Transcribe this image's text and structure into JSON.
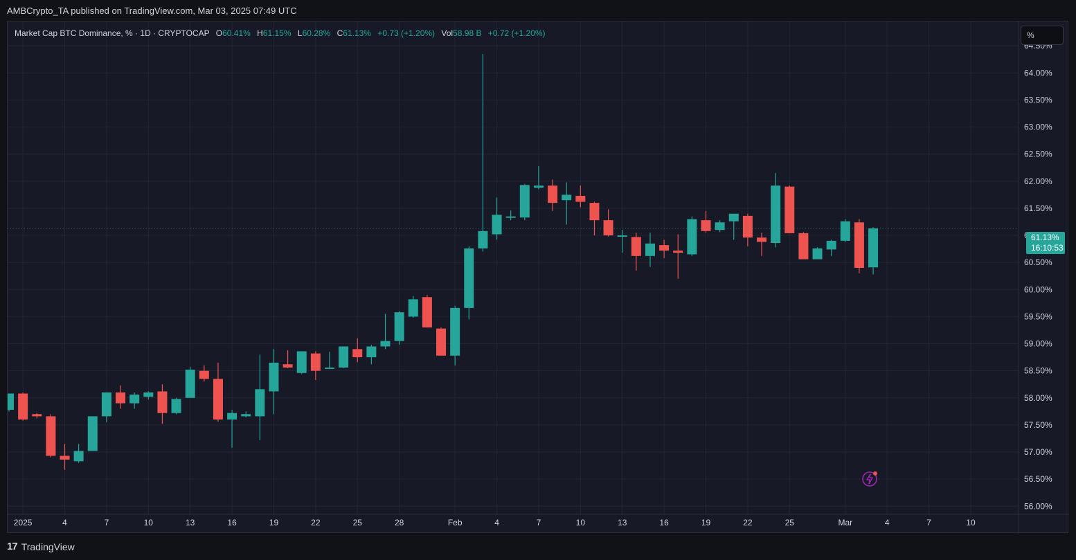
{
  "header": {
    "publish_text": "AMBCrypto_TA published on TradingView.com, Mar 03, 2025 07:49 UTC"
  },
  "legend": {
    "symbol": "Market Cap BTC Dominance, % · 1D · CRYPTOCAP",
    "o_label": "O",
    "o_value": "60.41%",
    "h_label": "H",
    "h_value": "61.15%",
    "l_label": "L",
    "l_value": "60.28%",
    "c_label": "C",
    "c_value": "61.13%",
    "change": "+0.73 (+1.20%)",
    "vol_label": "Vol",
    "vol_value": "58.98 B",
    "vol_change": "+0.72 (+1.20%)"
  },
  "controls": {
    "scale_button": "%"
  },
  "price_tag": {
    "price": "61.13%",
    "countdown": "16:10:53"
  },
  "footer": {
    "brand": "TradingView",
    "logo_glyph": "17"
  },
  "colors": {
    "up": "#26a69a",
    "down": "#ef5350",
    "grid": "#222634",
    "background": "#171a26"
  },
  "icons": {
    "flash": "lightning-icon"
  },
  "chart_data": {
    "type": "candlestick",
    "ylim": [
      55.85,
      64.95
    ],
    "y_ticks": [
      "64.50%",
      "64.00%",
      "63.50%",
      "63.00%",
      "62.50%",
      "62.00%",
      "61.50%",
      "61.00%",
      "60.50%",
      "60.00%",
      "59.50%",
      "59.00%",
      "58.50%",
      "58.00%",
      "57.50%",
      "57.00%",
      "56.50%",
      "56.00%"
    ],
    "y_tick_values": [
      64.5,
      64.0,
      63.5,
      63.0,
      62.5,
      62.0,
      61.5,
      61.0,
      60.5,
      60.0,
      59.5,
      59.0,
      58.5,
      58.0,
      57.5,
      57.0,
      56.5,
      56.0
    ],
    "x_ticks": [
      {
        "label": "2025",
        "day": 1
      },
      {
        "label": "4",
        "day": 4
      },
      {
        "label": "7",
        "day": 7
      },
      {
        "label": "10",
        "day": 10
      },
      {
        "label": "13",
        "day": 13
      },
      {
        "label": "16",
        "day": 16
      },
      {
        "label": "19",
        "day": 19
      },
      {
        "label": "22",
        "day": 22
      },
      {
        "label": "25",
        "day": 25
      },
      {
        "label": "28",
        "day": 28
      },
      {
        "label": "Feb",
        "day": 32
      },
      {
        "label": "4",
        "day": 35
      },
      {
        "label": "7",
        "day": 38
      },
      {
        "label": "10",
        "day": 41
      },
      {
        "label": "13",
        "day": 44
      },
      {
        "label": "16",
        "day": 47
      },
      {
        "label": "19",
        "day": 50
      },
      {
        "label": "22",
        "day": 53
      },
      {
        "label": "25",
        "day": 56
      },
      {
        "label": "Mar",
        "day": 60
      },
      {
        "label": "4",
        "day": 63
      },
      {
        "label": "7",
        "day": 66
      },
      {
        "label": "10",
        "day": 69
      }
    ],
    "candles": [
      {
        "day": 0,
        "o": 57.78,
        "h": 58.08,
        "l": 57.75,
        "c": 58.08
      },
      {
        "day": 1,
        "o": 58.08,
        "h": 58.1,
        "l": 57.58,
        "c": 57.6
      },
      {
        "day": 2,
        "o": 57.7,
        "h": 57.72,
        "l": 57.62,
        "c": 57.66
      },
      {
        "day": 3,
        "o": 57.66,
        "h": 57.7,
        "l": 56.9,
        "c": 56.93
      },
      {
        "day": 4,
        "o": 56.93,
        "h": 57.15,
        "l": 56.67,
        "c": 56.86
      },
      {
        "day": 5,
        "o": 56.83,
        "h": 57.15,
        "l": 56.8,
        "c": 57.02
      },
      {
        "day": 6,
        "o": 57.02,
        "h": 57.66,
        "l": 57.02,
        "c": 57.66
      },
      {
        "day": 7,
        "o": 57.66,
        "h": 58.1,
        "l": 57.55,
        "c": 58.1
      },
      {
        "day": 8,
        "o": 58.1,
        "h": 58.23,
        "l": 57.8,
        "c": 57.9
      },
      {
        "day": 9,
        "o": 57.9,
        "h": 58.1,
        "l": 57.8,
        "c": 58.06
      },
      {
        "day": 10,
        "o": 58.02,
        "h": 58.12,
        "l": 57.97,
        "c": 58.1
      },
      {
        "day": 11,
        "o": 58.12,
        "h": 58.25,
        "l": 57.52,
        "c": 57.72
      },
      {
        "day": 12,
        "o": 57.72,
        "h": 58.0,
        "l": 57.7,
        "c": 57.98
      },
      {
        "day": 13,
        "o": 58.0,
        "h": 58.57,
        "l": 58.0,
        "c": 58.52
      },
      {
        "day": 14,
        "o": 58.5,
        "h": 58.6,
        "l": 58.3,
        "c": 58.35
      },
      {
        "day": 15,
        "o": 58.35,
        "h": 58.65,
        "l": 57.56,
        "c": 57.6
      },
      {
        "day": 16,
        "o": 57.6,
        "h": 57.78,
        "l": 57.08,
        "c": 57.72
      },
      {
        "day": 17,
        "o": 57.66,
        "h": 57.75,
        "l": 57.64,
        "c": 57.7
      },
      {
        "day": 18,
        "o": 57.66,
        "h": 58.8,
        "l": 57.22,
        "c": 58.16
      },
      {
        "day": 19,
        "o": 58.12,
        "h": 58.9,
        "l": 57.7,
        "c": 58.65
      },
      {
        "day": 20,
        "o": 58.62,
        "h": 58.88,
        "l": 58.55,
        "c": 58.56
      },
      {
        "day": 21,
        "o": 58.46,
        "h": 58.86,
        "l": 58.44,
        "c": 58.86
      },
      {
        "day": 22,
        "o": 58.82,
        "h": 58.86,
        "l": 58.33,
        "c": 58.5
      },
      {
        "day": 23,
        "o": 58.54,
        "h": 58.85,
        "l": 58.53,
        "c": 58.56
      },
      {
        "day": 24,
        "o": 58.56,
        "h": 58.95,
        "l": 58.55,
        "c": 58.95
      },
      {
        "day": 25,
        "o": 58.9,
        "h": 59.1,
        "l": 58.66,
        "c": 58.75
      },
      {
        "day": 26,
        "o": 58.75,
        "h": 58.98,
        "l": 58.62,
        "c": 58.95
      },
      {
        "day": 27,
        "o": 58.95,
        "h": 59.55,
        "l": 58.9,
        "c": 59.05
      },
      {
        "day": 28,
        "o": 59.05,
        "h": 59.6,
        "l": 58.98,
        "c": 59.58
      },
      {
        "day": 29,
        "o": 59.5,
        "h": 59.88,
        "l": 59.48,
        "c": 59.82
      },
      {
        "day": 30,
        "o": 59.86,
        "h": 59.9,
        "l": 59.3,
        "c": 59.3
      },
      {
        "day": 31,
        "o": 59.28,
        "h": 59.3,
        "l": 58.78,
        "c": 58.78
      },
      {
        "day": 32,
        "o": 58.78,
        "h": 59.7,
        "l": 58.6,
        "c": 59.66
      },
      {
        "day": 33,
        "o": 59.66,
        "h": 60.8,
        "l": 59.45,
        "c": 60.76
      },
      {
        "day": 34,
        "o": 60.76,
        "h": 64.35,
        "l": 60.7,
        "c": 61.08
      },
      {
        "day": 35,
        "o": 61.02,
        "h": 61.7,
        "l": 60.92,
        "c": 61.38
      },
      {
        "day": 36,
        "o": 61.34,
        "h": 61.46,
        "l": 61.28,
        "c": 61.35
      },
      {
        "day": 37,
        "o": 61.33,
        "h": 61.95,
        "l": 61.28,
        "c": 61.93
      },
      {
        "day": 38,
        "o": 61.88,
        "h": 62.28,
        "l": 61.85,
        "c": 61.92
      },
      {
        "day": 39,
        "o": 61.92,
        "h": 62.03,
        "l": 61.45,
        "c": 61.6
      },
      {
        "day": 40,
        "o": 61.65,
        "h": 61.98,
        "l": 61.2,
        "c": 61.75
      },
      {
        "day": 41,
        "o": 61.73,
        "h": 61.92,
        "l": 61.52,
        "c": 61.62
      },
      {
        "day": 42,
        "o": 61.6,
        "h": 61.62,
        "l": 61.0,
        "c": 61.28
      },
      {
        "day": 43,
        "o": 61.28,
        "h": 61.48,
        "l": 60.98,
        "c": 61.0
      },
      {
        "day": 44,
        "o": 61.0,
        "h": 61.1,
        "l": 60.68,
        "c": 61.0
      },
      {
        "day": 45,
        "o": 60.97,
        "h": 61.05,
        "l": 60.35,
        "c": 60.62
      },
      {
        "day": 46,
        "o": 60.62,
        "h": 61.05,
        "l": 60.42,
        "c": 60.85
      },
      {
        "day": 47,
        "o": 60.82,
        "h": 60.92,
        "l": 60.58,
        "c": 60.72
      },
      {
        "day": 48,
        "o": 60.72,
        "h": 61.02,
        "l": 60.2,
        "c": 60.68
      },
      {
        "day": 49,
        "o": 60.65,
        "h": 61.35,
        "l": 60.62,
        "c": 61.3
      },
      {
        "day": 50,
        "o": 61.28,
        "h": 61.45,
        "l": 61.05,
        "c": 61.08
      },
      {
        "day": 51,
        "o": 61.1,
        "h": 61.28,
        "l": 61.06,
        "c": 61.24
      },
      {
        "day": 52,
        "o": 61.26,
        "h": 61.4,
        "l": 60.92,
        "c": 61.4
      },
      {
        "day": 53,
        "o": 61.36,
        "h": 61.4,
        "l": 60.8,
        "c": 60.96
      },
      {
        "day": 54,
        "o": 60.96,
        "h": 61.05,
        "l": 60.62,
        "c": 60.88
      },
      {
        "day": 55,
        "o": 60.86,
        "h": 62.15,
        "l": 60.78,
        "c": 61.92
      },
      {
        "day": 56,
        "o": 61.9,
        "h": 61.92,
        "l": 61.04,
        "c": 61.04
      },
      {
        "day": 57,
        "o": 61.04,
        "h": 61.06,
        "l": 60.56,
        "c": 60.56
      },
      {
        "day": 58,
        "o": 60.56,
        "h": 60.78,
        "l": 60.56,
        "c": 60.76
      },
      {
        "day": 59,
        "o": 60.74,
        "h": 60.92,
        "l": 60.62,
        "c": 60.9
      },
      {
        "day": 60,
        "o": 60.9,
        "h": 61.3,
        "l": 60.88,
        "c": 61.26
      },
      {
        "day": 61,
        "o": 61.24,
        "h": 61.3,
        "l": 60.3,
        "c": 60.4
      },
      {
        "day": 62,
        "o": 60.41,
        "h": 61.15,
        "l": 60.28,
        "c": 61.13
      }
    ]
  }
}
